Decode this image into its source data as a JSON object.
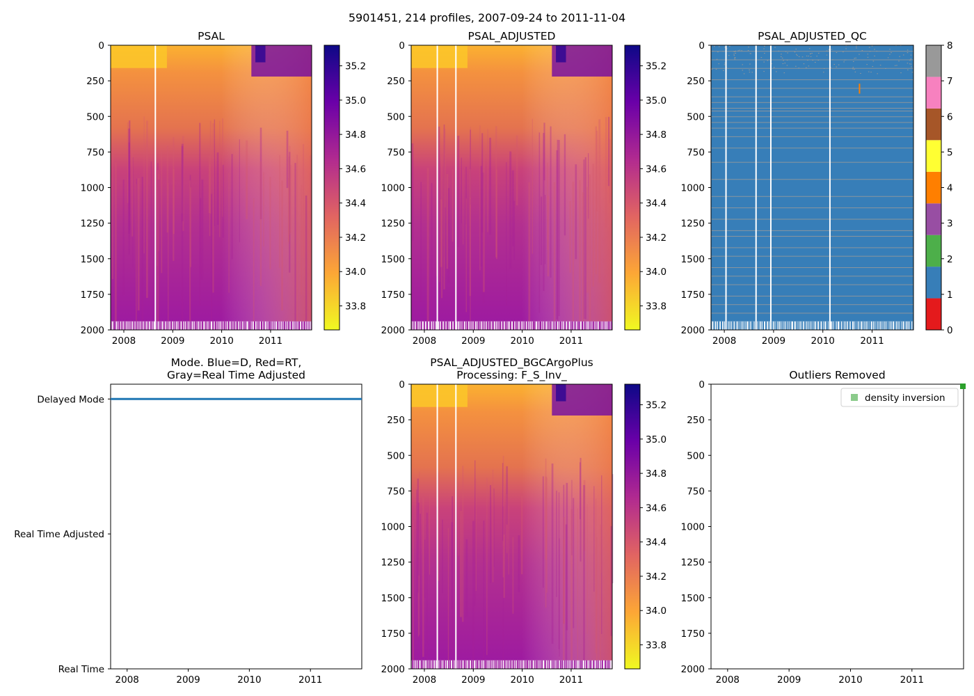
{
  "figure": {
    "suptitle": "5901451, 214 profiles, 2007-09-24 to 2011-11-04"
  },
  "colors": {
    "qc_palette": [
      "#e41a1c",
      "#377eb8",
      "#4daf4a",
      "#984ea3",
      "#ff7f00",
      "#ffff33",
      "#a65628",
      "#f781bf",
      "#999999"
    ],
    "mode_line": "#1f77b4",
    "density_marker": "#2ca02c",
    "cmap_stops": [
      "#f0f921",
      "#fca636",
      "#e16462",
      "#b12a90",
      "#6a00a8",
      "#0d0887"
    ]
  },
  "chart_data": [
    {
      "id": "psal",
      "type": "heatmap",
      "title": "PSAL",
      "xticks": [
        "2008",
        "2009",
        "2010",
        "2011"
      ],
      "yticks": [
        "0",
        "250",
        "500",
        "750",
        "1000",
        "1250",
        "1500",
        "1750",
        "2000"
      ],
      "ylim": [
        2000,
        0
      ],
      "xlim": [
        2007.73,
        2011.84
      ],
      "colorbar": {
        "ticks": [
          "33.8",
          "34.0",
          "34.2",
          "34.4",
          "34.6",
          "34.8",
          "35.0",
          "35.2"
        ],
        "range": [
          33.66,
          35.32
        ]
      },
      "gaps": [
        2008.63
      ]
    },
    {
      "id": "psal_adjusted",
      "type": "heatmap",
      "title": "PSAL_ADJUSTED",
      "xticks": [
        "2008",
        "2009",
        "2010",
        "2011"
      ],
      "yticks": [
        "0",
        "250",
        "500",
        "750",
        "1000",
        "1250",
        "1500",
        "1750",
        "2000"
      ],
      "ylim": [
        2000,
        0
      ],
      "xlim": [
        2007.73,
        2011.84
      ],
      "colorbar": {
        "ticks": [
          "33.8",
          "34.0",
          "34.2",
          "34.4",
          "34.6",
          "34.8",
          "35.0",
          "35.2"
        ],
        "range": [
          33.66,
          35.32
        ]
      },
      "gaps": [
        2008.25,
        2008.63
      ]
    },
    {
      "id": "psal_adjusted_qc",
      "type": "heatmap",
      "title": "PSAL_ADJUSTED_QC",
      "xticks": [
        "2008",
        "2009",
        "2010",
        "2011"
      ],
      "yticks": [
        "0",
        "250",
        "500",
        "750",
        "1000",
        "1250",
        "1500",
        "1750",
        "2000"
      ],
      "ylim": [
        2000,
        0
      ],
      "xlim": [
        2007.73,
        2011.84
      ],
      "colorbar": {
        "ticks": [
          "0",
          "1",
          "2",
          "3",
          "4",
          "5",
          "6",
          "7",
          "8"
        ],
        "range": [
          0,
          8
        ]
      },
      "gaps": [
        2008.02,
        2008.63,
        2008.93,
        2010.13
      ]
    },
    {
      "id": "mode",
      "type": "line",
      "title": "Mode. Blue=D, Red=RT,",
      "title_line2": "Gray=Real Time Adjusted",
      "xticks": [
        "2008",
        "2009",
        "2010",
        "2011"
      ],
      "yticks": [
        "Delayed Mode",
        "Real Time Adjusted",
        "Real Time"
      ],
      "xlim": [
        2007.73,
        2011.84
      ],
      "series": [
        {
          "name": "D",
          "x": [
            2007.73,
            2011.84
          ],
          "y": [
            2,
            2
          ]
        }
      ]
    },
    {
      "id": "bgc",
      "type": "heatmap",
      "title": "PSAL_ADJUSTED_BGCArgoPlus",
      "title_line2": "Processing: F_S_Inv_",
      "xticks": [
        "2008",
        "2009",
        "2010",
        "2011"
      ],
      "yticks": [
        "0",
        "250",
        "500",
        "750",
        "1000",
        "1250",
        "1500",
        "1750",
        "2000"
      ],
      "ylim": [
        2000,
        0
      ],
      "xlim": [
        2007.73,
        2011.84
      ],
      "colorbar": {
        "ticks": [
          "33.8",
          "34.0",
          "34.2",
          "34.4",
          "34.6",
          "34.8",
          "35.0",
          "35.2"
        ],
        "range": [
          33.66,
          35.32
        ]
      },
      "gaps": [
        2008.25,
        2008.63
      ]
    },
    {
      "id": "outliers",
      "type": "scatter",
      "title": "Outliers Removed",
      "xticks": [
        "2008",
        "2009",
        "2010",
        "2011"
      ],
      "yticks": [
        "0",
        "250",
        "500",
        "750",
        "1000",
        "1250",
        "1500",
        "1750",
        "2000"
      ],
      "ylim": [
        2000,
        0
      ],
      "xlim": [
        2007.73,
        2011.84
      ],
      "legend": {
        "label": "density inversion",
        "placement": "top-right"
      },
      "points": [
        {
          "x": 2011.84,
          "y": 0
        }
      ]
    }
  ]
}
